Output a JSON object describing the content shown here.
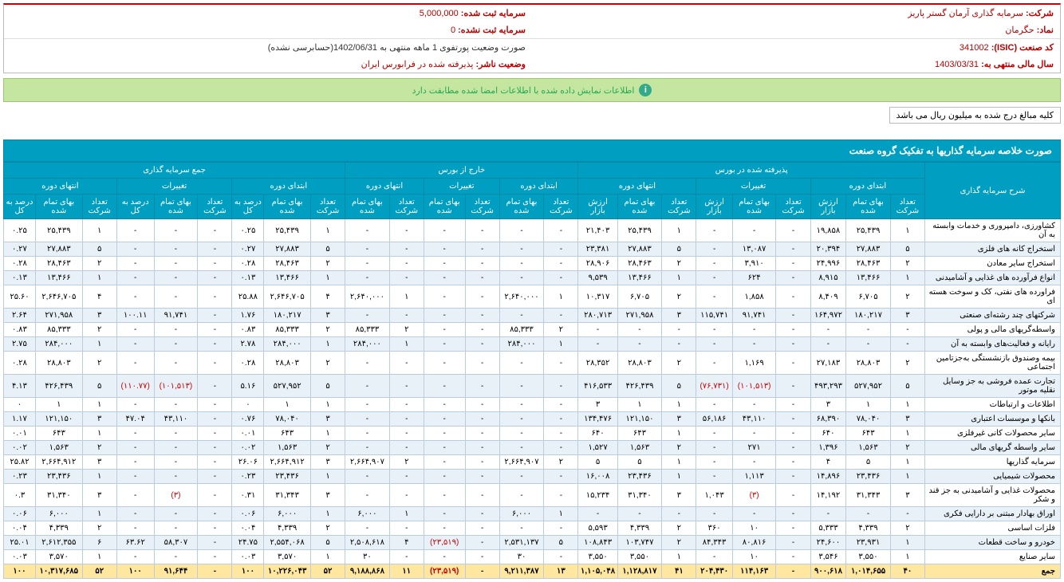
{
  "info": {
    "company_lbl": "شرکت:",
    "company": "سرمایه گذاری آرمان گستر پاریز",
    "regcap_lbl": "سرمایه ثبت شده:",
    "regcap": "5,000,000",
    "symbol_lbl": "نماد:",
    "symbol": "حگرمان",
    "unregcap_lbl": "سرمایه ثبت نشده:",
    "unregcap": "0",
    "isic_lbl": "کد صنعت (ISIC):",
    "isic": "341002",
    "portfolio_lbl": "صورت وضعیت پورتفوی 1 ماهه منتهی به 1402/06/31(حسابرسی نشده)",
    "fyear_lbl": "سال مالی منتهی به:",
    "fyear": "1403/03/31",
    "pubstat_lbl": "وضعیت ناشر:",
    "pubstat": "پذیرفته شده در فرابورس ایران"
  },
  "banner": "اطلاعات نمایش داده شده با اطلاعات امضا شده مطابقت دارد",
  "note": "کلیه مبالغ درج شده به میلیون ریال می باشد",
  "tbl_title": "صورت خلاصه سرمایه گذاریها به تفکیک گروه صنعت",
  "grp": {
    "desc": "شرح سرمایه گذاری",
    "bourse": "پذیرفته شده در بورس",
    "offbourse": "خارج از بورس",
    "total": "جمع سرمایه گذاری",
    "start": "ابتدای دوره",
    "change": "تغییرات",
    "end": "انتهای دوره"
  },
  "cols": {
    "cnt": "تعداد شرکت",
    "cost": "بهای تمام شده",
    "mkt": "ارزش بازار",
    "pct": "درصد به کل"
  },
  "rows": [
    {
      "n": "کشاورزی، دامپروری و خدمات وابسته به آن",
      "c": [
        "۱",
        "۲۵,۴۳۹",
        "۱۹,۸۵۸",
        "-",
        "-",
        "-",
        "۱",
        "۲۵,۴۳۹",
        "۲۱,۴۰۳",
        "-",
        "-",
        "-",
        "-",
        "-",
        "-",
        "۱",
        "۲۵,۴۳۹",
        "۰.۲۵",
        "-",
        "-",
        "-",
        "۱",
        "۲۵,۴۳۹",
        "۰.۲۵"
      ]
    },
    {
      "n": "استخراج کانه های فلزی",
      "c": [
        "۵",
        "۲۷,۸۸۳",
        "۲۰,۳۹۴",
        "-",
        "۱۳,۰۸۷",
        "-",
        "۵",
        "۲۷,۸۸۳",
        "۲۳,۳۸۱",
        "-",
        "-",
        "-",
        "-",
        "-",
        "-",
        "۵",
        "۲۷,۸۸۳",
        "۰.۲۷",
        "-",
        "-",
        "-",
        "۵",
        "۲۷,۸۸۳",
        "۰.۲۷"
      ]
    },
    {
      "n": "استخراج سایر معادن",
      "c": [
        "۲",
        "۲۸,۴۶۳",
        "۲۴,۹۹۶",
        "-",
        "۳,۹۱۰",
        "-",
        "۲",
        "۲۸,۴۶۳",
        "۲۸,۹۰۶",
        "-",
        "-",
        "-",
        "-",
        "-",
        "-",
        "۲",
        "۲۸,۴۶۳",
        "۰.۲۸",
        "-",
        "-",
        "-",
        "۲",
        "۲۸,۴۶۳",
        "۰.۲۸"
      ]
    },
    {
      "n": "انواع فرآورده های غذایی و آشامیدنی",
      "c": [
        "۱",
        "۱۳,۴۶۶",
        "۸,۹۱۵",
        "-",
        "۶۲۴",
        "-",
        "۱",
        "۱۳,۴۶۶",
        "۹,۵۳۹",
        "-",
        "-",
        "-",
        "-",
        "-",
        "-",
        "۱",
        "۱۳,۴۶۶",
        "۰.۱۳",
        "-",
        "-",
        "-",
        "۱",
        "۱۳,۴۶۶",
        "۰.۱۳"
      ]
    },
    {
      "n": "فراورده های نفتی، کک و سوخت هسته ای",
      "c": [
        "۲",
        "۶,۷۰۵",
        "۸,۴۰۹",
        "-",
        "۱,۸۵۸",
        "-",
        "۲",
        "۶,۷۰۵",
        "۱۰,۳۱۷",
        "۱",
        "۲,۶۴۰,۰۰۰",
        "-",
        "-",
        "۱",
        "۲,۶۴۰,۰۰۰",
        "۴",
        "۲,۶۴۶,۷۰۵",
        "۲۵.۸۸",
        "-",
        "-",
        "-",
        "۴",
        "۲,۶۴۶,۷۰۵",
        "۲۵.۶۰"
      ]
    },
    {
      "n": "شرکتهای چند رشته‌ای صنعتی",
      "c": [
        "۳",
        "۱۸۰,۲۱۷",
        "۱۶۴,۹۷۲",
        "-",
        "۹۱,۷۴۱",
        "۱۱۵,۷۴۱",
        "۳",
        "۲۷۱,۹۵۸",
        "۲۸۰,۷۱۳",
        "-",
        "-",
        "-",
        "-",
        "-",
        "-",
        "۳",
        "۱۸۰,۲۱۷",
        "۱.۷۶",
        "-",
        "۹۱,۷۴۱",
        "۱۰۰.۱۱",
        "۳",
        "۲۷۱,۹۵۸",
        "۲.۶۴"
      ]
    },
    {
      "n": "واسطه‌گریهای مالی و پولی",
      "c": [
        "-",
        "-",
        "-",
        "-",
        "-",
        "-",
        "-",
        "-",
        "-",
        "۲",
        "۸۵,۳۳۳",
        "-",
        "-",
        "۲",
        "۸۵,۳۳۳",
        "۲",
        "۸۵,۳۳۳",
        "۰.۸۳",
        "-",
        "-",
        "-",
        "۲",
        "۸۵,۳۳۳",
        "۰.۸۳"
      ]
    },
    {
      "n": "رایانه و فعالیت‌های وابسته به آن",
      "c": [
        "-",
        "-",
        "-",
        "-",
        "-",
        "-",
        "-",
        "-",
        "-",
        "۱",
        "۲۸۴,۰۰۰",
        "-",
        "-",
        "۱",
        "۲۸۴,۰۰۰",
        "۱",
        "۲۸۴,۰۰۰",
        "۲.۷۸",
        "-",
        "-",
        "-",
        "۱",
        "۲۸۴,۰۰۰",
        "۲.۷۵"
      ]
    },
    {
      "n": "بیمه وصندوق بازنشستگی به‌جزتامین اجتماعی",
      "c": [
        "۲",
        "۲۸,۸۰۳",
        "۲۷,۱۸۳",
        "-",
        "۱,۱۶۹",
        "-",
        "۲",
        "۲۸,۸۰۳",
        "۲۸,۳۵۲",
        "-",
        "-",
        "-",
        "-",
        "-",
        "-",
        "۲",
        "۲۸,۸۰۳",
        "۰.۲۸",
        "-",
        "-",
        "-",
        "۲",
        "۲۸,۸۰۳",
        "۰.۲۸"
      ]
    },
    {
      "n": "تجارت عمده فروشی به جز وسایل نقلیه موتور",
      "c": [
        "۵",
        "۵۲۷,۹۵۲",
        "۴۹۳,۲۹۳",
        "-",
        "(۱۰۱,۵۱۳)",
        "(۷۶,۷۳۱)",
        "۵",
        "۴۲۶,۴۳۹",
        "۴۱۶,۵۳۳",
        "-",
        "-",
        "-",
        "-",
        "-",
        "-",
        "۵",
        "۵۲۷,۹۵۲",
        "۵.۱۶",
        "-",
        "(۱۰۱,۵۱۳)",
        "(۱۱۰.۷۷)",
        "۵",
        "۴۲۶,۴۳۹",
        "۴.۱۳"
      ]
    },
    {
      "n": "اطلاعات و ارتباطات",
      "c": [
        "۱",
        "۱",
        "۳",
        "-",
        "-",
        "-",
        "۱",
        "۱",
        "۳",
        "-",
        "-",
        "-",
        "-",
        "-",
        "-",
        "۱",
        "۱",
        "۰",
        "-",
        "-",
        "-",
        "۱",
        "۱",
        "۰"
      ]
    },
    {
      "n": "بانکها و موسسات اعتباری",
      "c": [
        "۳",
        "۷۸,۰۴۰",
        "۶۸,۳۹۰",
        "-",
        "۴۳,۱۱۰",
        "۵۶,۱۸۶",
        "۳",
        "۱۲۱,۱۵۰",
        "۱۳۴,۴۷۶",
        "-",
        "-",
        "-",
        "-",
        "-",
        "-",
        "۳",
        "۷۸,۰۴۰",
        "۰.۷۶",
        "-",
        "۴۳,۱۱۰",
        "۴۷.۰۴",
        "۳",
        "۱۲۱,۱۵۰",
        "۱.۱۷"
      ]
    },
    {
      "n": "سایر محصولات کانی غیرفلزی",
      "c": [
        "۱",
        "۶۴۳",
        "۶۴۰",
        "-",
        "-",
        "-",
        "۱",
        "۶۴۳",
        "۶۴۰",
        "-",
        "-",
        "-",
        "-",
        "-",
        "-",
        "۱",
        "۶۴۳",
        "۰.۰۱",
        "-",
        "-",
        "-",
        "۱",
        "۶۴۳",
        "۰.۰۱"
      ]
    },
    {
      "n": "سایر واسطه گریهای مالی",
      "c": [
        "۲",
        "۱,۵۶۳",
        "۱,۳۹۶",
        "-",
        "۲۷۱",
        "-",
        "۲",
        "۱,۵۶۳",
        "۱,۵۲۷",
        "-",
        "-",
        "-",
        "-",
        "-",
        "-",
        "۲",
        "۱,۵۶۳",
        "۰.۰۲",
        "-",
        "-",
        "-",
        "۲",
        "۱,۵۶۳",
        "۰.۰۲"
      ]
    },
    {
      "n": "سرمایه گذاریها",
      "c": [
        "۱",
        "۵",
        "۴",
        "-",
        "-",
        "-",
        "۱",
        "۵",
        "۵",
        "۲",
        "۲,۶۶۴,۹۰۷",
        "-",
        "-",
        "۲",
        "۲,۶۶۴,۹۰۷",
        "۳",
        "۲,۶۶۴,۹۱۲",
        "۲۶.۰۶",
        "-",
        "-",
        "-",
        "۳",
        "۲,۶۶۴,۹۱۲",
        "۲۵.۸۲"
      ]
    },
    {
      "n": "محصولات شیمیایی",
      "c": [
        "۱",
        "۲۳,۴۳۶",
        "۱۴,۸۹۶",
        "-",
        "۱,۱۱۳",
        "-",
        "۱",
        "۲۳,۴۳۶",
        "۱۶,۰۰۸",
        "-",
        "-",
        "-",
        "-",
        "-",
        "-",
        "۱",
        "۲۳,۴۳۶",
        "۰.۲۳",
        "-",
        "-",
        "-",
        "۱",
        "۲۳,۴۳۶",
        "۰.۲۳"
      ]
    },
    {
      "n": "محصولات غذایی و آشامیدنی به جز قند و شکر",
      "c": [
        "۳",
        "۳۱,۳۴۳",
        "۱۴,۱۹۲",
        "-",
        "(۳)",
        "۱,۰۴۳",
        "۳",
        "۳۱,۳۴۰",
        "۱۵,۲۳۴",
        "-",
        "-",
        "-",
        "-",
        "-",
        "-",
        "۳",
        "۳۱,۳۴۳",
        "۰.۳۱",
        "-",
        "(۳)",
        "-",
        "۳",
        "۳۱,۳۴۰",
        "۰.۳"
      ]
    },
    {
      "n": "اوراق بهادار مبتنی بر دارایی فکری",
      "c": [
        "-",
        "-",
        "-",
        "-",
        "-",
        "-",
        "-",
        "-",
        "-",
        "۱",
        "۶,۰۰۰",
        "-",
        "-",
        "۱",
        "۶,۰۰۰",
        "۱",
        "۶,۰۰۰",
        "۰.۰۶",
        "-",
        "-",
        "-",
        "۱",
        "۶,۰۰۰",
        "۰.۰۶"
      ]
    },
    {
      "n": "فلزات اساسی",
      "c": [
        "۲",
        "۴,۳۳۹",
        "۵,۳۳۳",
        "-",
        "۱۰",
        "۳۶۰",
        "۲",
        "۴,۳۳۹",
        "۵,۵۹۳",
        "-",
        "-",
        "-",
        "-",
        "-",
        "-",
        "۲",
        "۴,۳۳۹",
        "۰.۰۴",
        "-",
        "-",
        "-",
        "۲",
        "۴,۳۳۹",
        "۰.۰۴"
      ]
    },
    {
      "n": "خودرو و ساخت قطعات",
      "c": [
        "۱",
        "۲۳,۹۳۱",
        "۲۴,۶۰۰",
        "-",
        "۸۰,۸۱۶",
        "۸۴,۳۴۳",
        "۲",
        "۱۰۳,۷۴۷",
        "۱۰۸,۸۴۳",
        "۵",
        "۲,۵۳۱,۱۳۷",
        "-",
        "(۲۳,۵۱۹)",
        "۴",
        "۲,۵۰۸,۶۱۸",
        "۵",
        "۲,۵۵۴,۰۶۸",
        "۲۴.۷۵",
        "-",
        "۵۸,۳۰۷",
        "۶۳.۶۲",
        "۶",
        "۲,۶۱۲,۳۵۵",
        "۲۵.۰۱"
      ]
    },
    {
      "n": "سایر صنایع",
      "c": [
        "۱",
        "۳,۵۵۰",
        "۳,۵۴۶",
        "-",
        "۱۰",
        "-",
        "۱",
        "۳,۵۵۰",
        "۳,۵۵۰",
        "-",
        "۳۰",
        "-",
        "-",
        "-",
        "۳۰",
        "۱",
        "۳,۵۷۰",
        "۰.۰۳",
        "-",
        "-",
        "-",
        "۱",
        "۳,۵۷۰",
        "۰.۰۳"
      ]
    }
  ],
  "sum": {
    "n": "جمع",
    "c": [
      "۴۰",
      "۱,۰۱۴,۶۵۵",
      "۹۰۰,۶۱۸",
      "-",
      "۱۱۴,۱۶۳",
      "۲۰۴,۴۳۰",
      "۴۱",
      "۱,۱۲۸,۸۱۷",
      "۱,۱۰۵,۰۴۸",
      "۱۳",
      "۹,۲۱۱,۳۸۷",
      "-",
      "(۲۳,۵۱۹)",
      "۱۱",
      "۹,۱۸۸,۸۶۸",
      "۵۲",
      "۱۰,۲۲۶,۰۴۳",
      "۱۰۰",
      "-",
      "۹۱,۶۴۴",
      "۱۰۰",
      "۵۲",
      "۱۰,۳۱۷,۶۸۵",
      "۱۰۰"
    ]
  }
}
